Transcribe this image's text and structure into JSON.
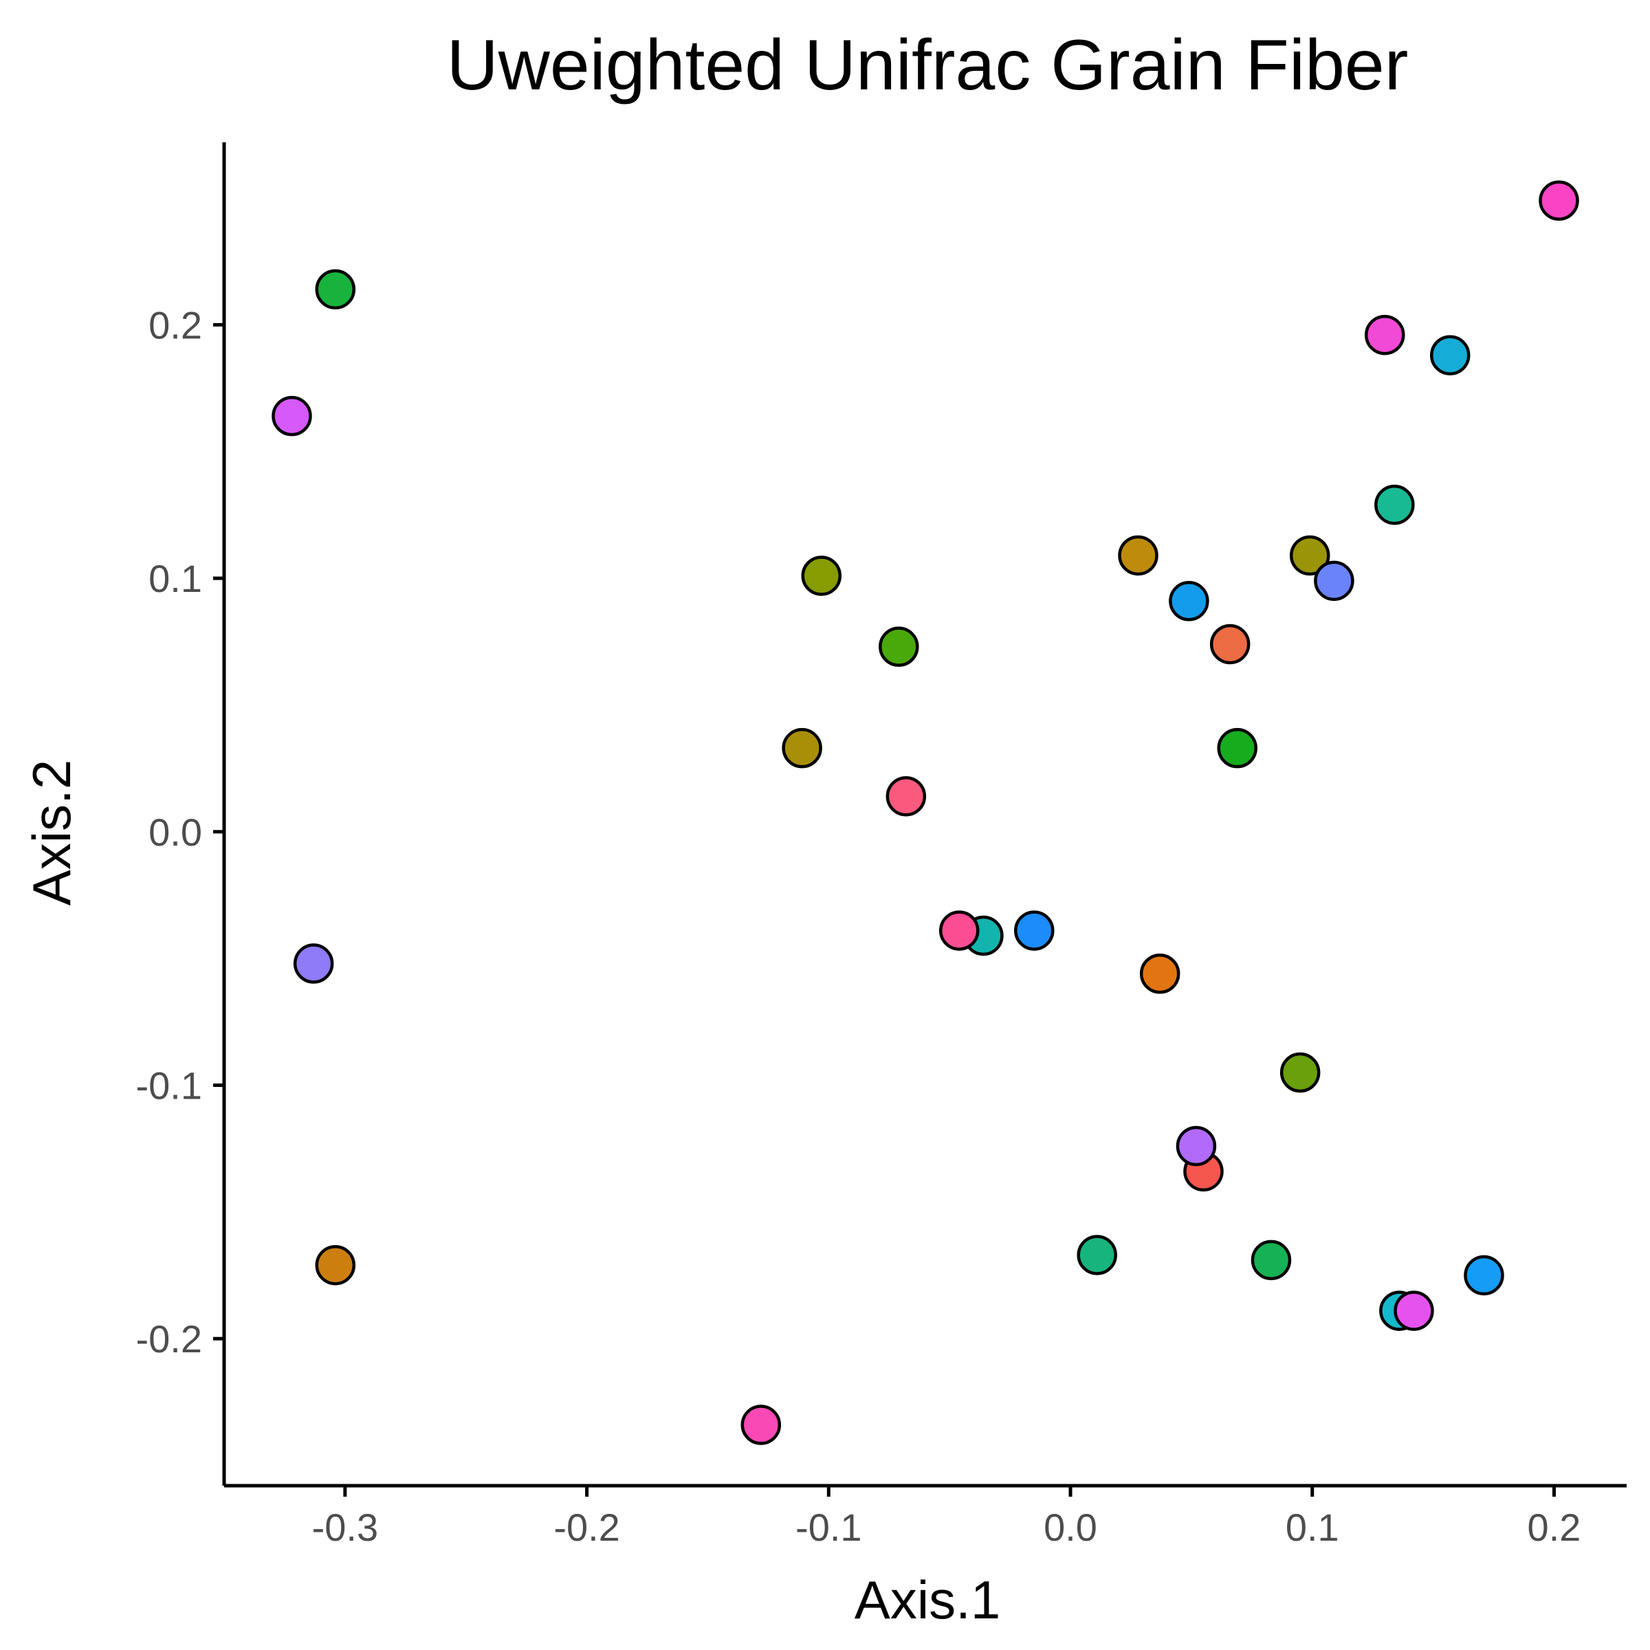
{
  "chart_data": {
    "type": "scatter",
    "title": "Uweighted Unifrac Grain Fiber",
    "xlabel": "Axis.1",
    "ylabel": "Axis.2",
    "xlim": [
      -0.35,
      0.23
    ],
    "ylim": [
      -0.258,
      0.272
    ],
    "x_ticks": [
      -0.3,
      -0.2,
      -0.1,
      0.0,
      0.1,
      0.2
    ],
    "x_tick_labels": [
      "-0.3",
      "-0.2",
      "-0.1",
      "0.0",
      "0.1",
      "0.2"
    ],
    "y_ticks": [
      -0.2,
      -0.1,
      0.0,
      0.1,
      0.2
    ],
    "y_tick_labels": [
      "-0.2",
      "-0.1",
      "0.0",
      "0.1",
      "0.2"
    ],
    "grid": false,
    "legend": "none",
    "points": [
      {
        "x": -0.304,
        "y": 0.214,
        "color": "#17B33D"
      },
      {
        "x": -0.322,
        "y": 0.164,
        "color": "#D65AF9"
      },
      {
        "x": -0.313,
        "y": -0.052,
        "color": "#8F7AF7"
      },
      {
        "x": -0.304,
        "y": -0.171,
        "color": "#CC7F0F"
      },
      {
        "x": -0.128,
        "y": -0.234,
        "color": "#F949B5"
      },
      {
        "x": -0.103,
        "y": 0.101,
        "color": "#869C00"
      },
      {
        "x": -0.071,
        "y": 0.073,
        "color": "#49A90B"
      },
      {
        "x": -0.111,
        "y": 0.033,
        "color": "#A98F07"
      },
      {
        "x": -0.068,
        "y": 0.014,
        "color": "#FB5A7E"
      },
      {
        "x": -0.036,
        "y": -0.041,
        "color": "#13B4AE"
      },
      {
        "x": -0.046,
        "y": -0.039,
        "color": "#FC4D93"
      },
      {
        "x": -0.015,
        "y": -0.039,
        "color": "#1C8CFA"
      },
      {
        "x": 0.028,
        "y": 0.109,
        "color": "#BF8B0C"
      },
      {
        "x": 0.049,
        "y": 0.091,
        "color": "#139CEC"
      },
      {
        "x": 0.066,
        "y": 0.074,
        "color": "#EC6C43"
      },
      {
        "x": 0.069,
        "y": 0.033,
        "color": "#16AC1E"
      },
      {
        "x": 0.037,
        "y": -0.056,
        "color": "#E27512"
      },
      {
        "x": 0.099,
        "y": 0.109,
        "color": "#9A9408"
      },
      {
        "x": 0.109,
        "y": 0.099,
        "color": "#6A83FB"
      },
      {
        "x": 0.095,
        "y": -0.095,
        "color": "#69A00C"
      },
      {
        "x": 0.055,
        "y": -0.134,
        "color": "#F5564D"
      },
      {
        "x": 0.052,
        "y": -0.124,
        "color": "#B16AFA"
      },
      {
        "x": 0.011,
        "y": -0.167,
        "color": "#18B47D"
      },
      {
        "x": 0.083,
        "y": -0.169,
        "color": "#15B154"
      },
      {
        "x": 0.134,
        "y": 0.129,
        "color": "#18BA94"
      },
      {
        "x": 0.13,
        "y": 0.196,
        "color": "#F14AD6"
      },
      {
        "x": 0.157,
        "y": 0.188,
        "color": "#15ADD7"
      },
      {
        "x": 0.202,
        "y": 0.249,
        "color": "#FB43C6"
      },
      {
        "x": 0.171,
        "y": -0.175,
        "color": "#159CF6"
      },
      {
        "x": 0.136,
        "y": -0.189,
        "color": "#14B9CC"
      },
      {
        "x": 0.142,
        "y": -0.189,
        "color": "#E552EE"
      }
    ]
  }
}
